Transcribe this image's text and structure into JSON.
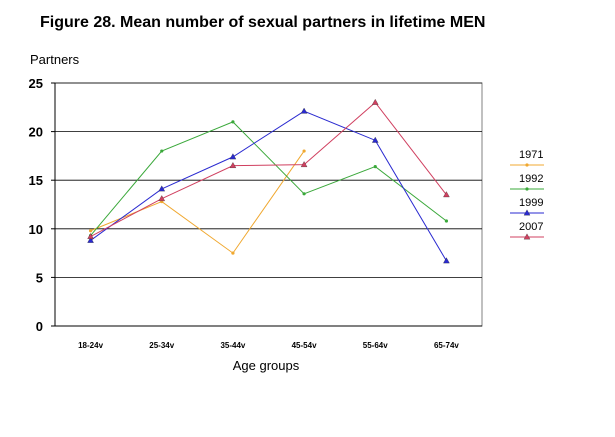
{
  "chart_data": {
    "type": "line",
    "title": "Figure 28. Mean number of sexual partners in lifetime MEN",
    "xlabel": "Age groups",
    "ylabel": "Partners",
    "categories": [
      "18-24v",
      "25-34v",
      "35-44v",
      "45-54v",
      "55-64v",
      "65-74v"
    ],
    "ylim": [
      0,
      25
    ],
    "yticks": [
      0,
      5,
      10,
      15,
      20,
      25
    ],
    "grid": true,
    "legend": "right",
    "series": [
      {
        "name": "1971",
        "color": "#f0a830",
        "marker": "dot",
        "values": [
          9.8,
          12.8,
          7.5,
          18.0,
          null,
          null
        ]
      },
      {
        "name": "1992",
        "color": "#3aa83a",
        "marker": "dot",
        "values": [
          9.3,
          18.0,
          21.0,
          13.6,
          16.4,
          10.8
        ]
      },
      {
        "name": "1999",
        "color": "#2a2ad0",
        "marker": "triangle",
        "values": [
          8.8,
          14.1,
          17.4,
          22.1,
          19.1,
          6.7
        ]
      },
      {
        "name": "2007",
        "color": "#d04060",
        "marker": "triangle",
        "values": [
          9.2,
          13.1,
          16.5,
          16.6,
          23.0,
          13.5
        ]
      }
    ]
  }
}
